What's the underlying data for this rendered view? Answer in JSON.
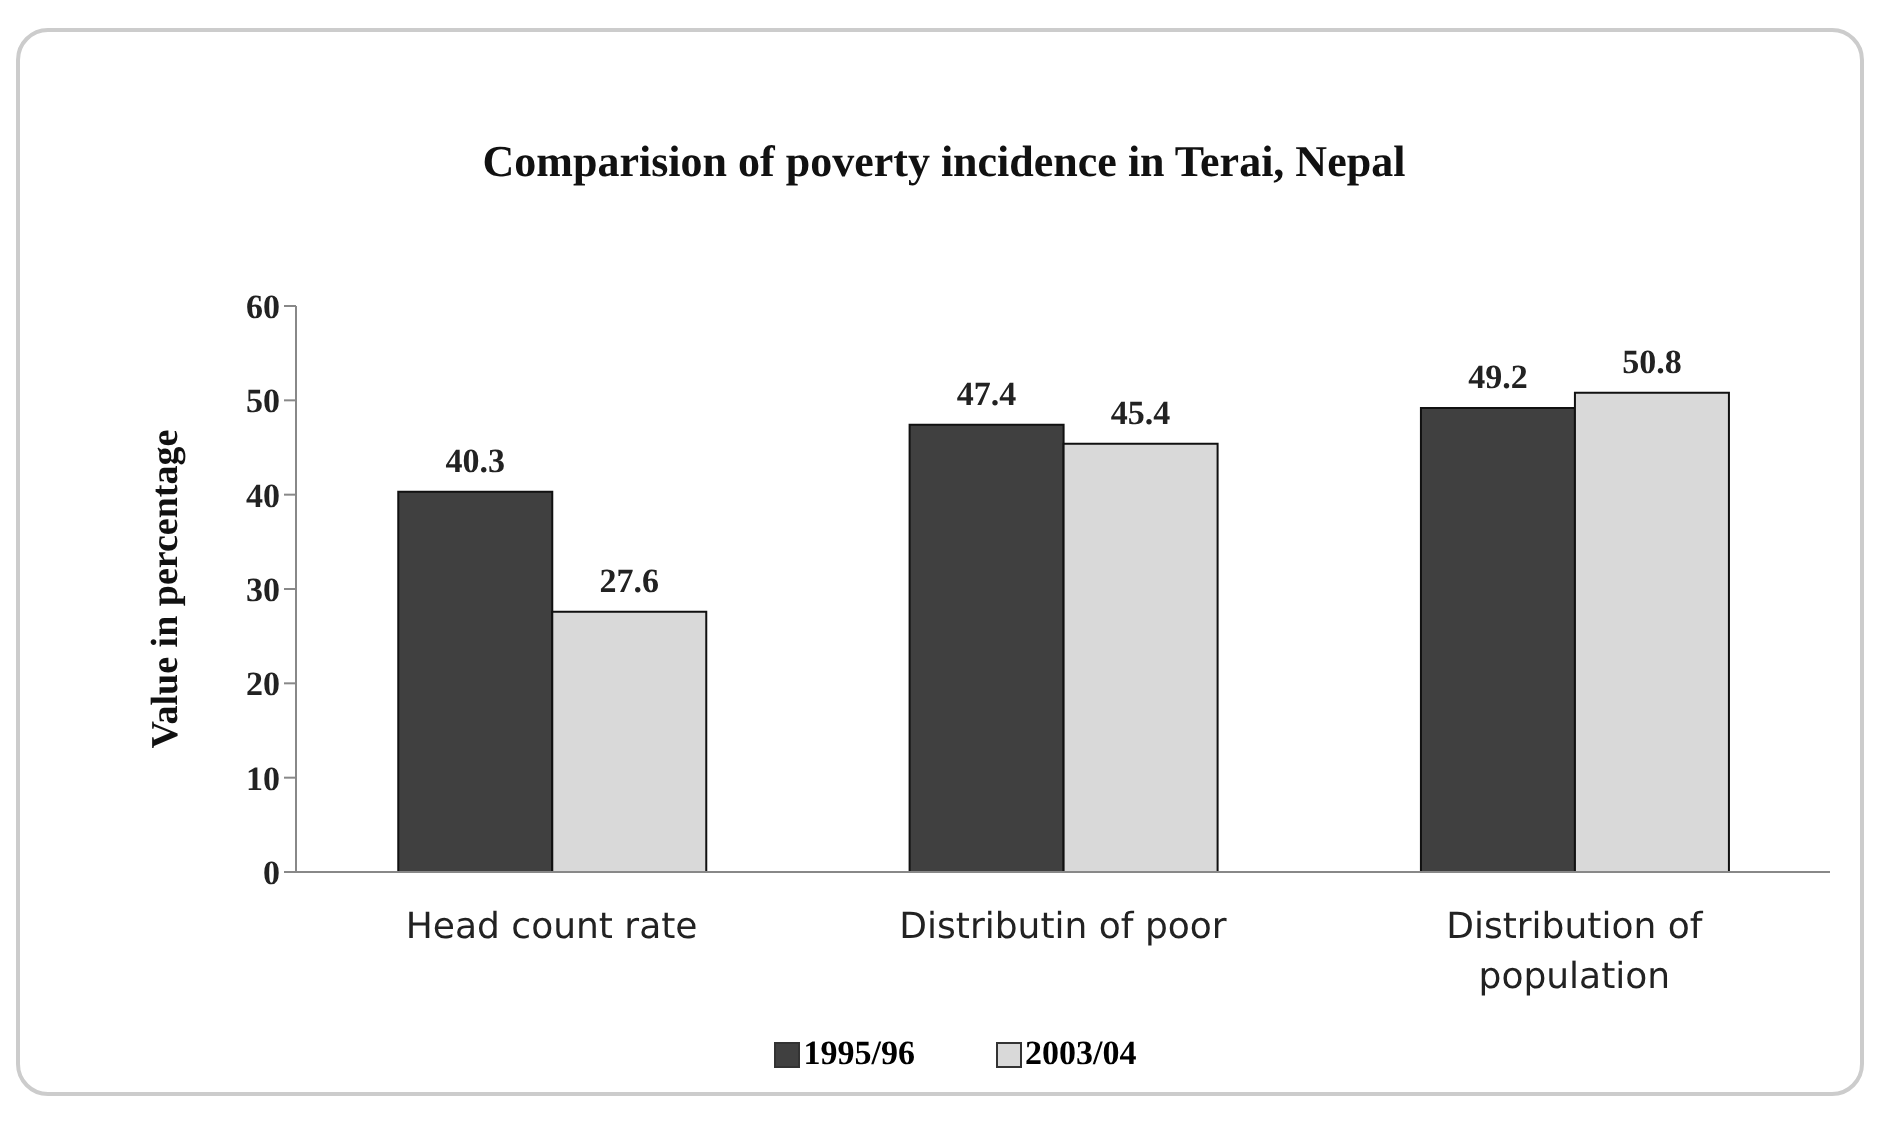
{
  "chart_data": {
    "type": "bar",
    "title": "Comparision  of poverty  incidence in Terai, Nepal",
    "ylabel": "Value in percentage",
    "categories": [
      "Head count rate",
      "Distributin of poor",
      "Distribution of population"
    ],
    "series": [
      {
        "name": "1995/96",
        "color": "#404040",
        "values": [
          40.3,
          47.4,
          49.2
        ]
      },
      {
        "name": "2003/04",
        "color": "#d9d9d9",
        "values": [
          27.6,
          45.4,
          50.8
        ]
      }
    ],
    "ylim": [
      0,
      60
    ],
    "yticks": [
      0,
      10,
      20,
      30,
      40,
      50,
      60
    ],
    "data_labels": true,
    "legend": "bottom",
    "grid": false
  }
}
